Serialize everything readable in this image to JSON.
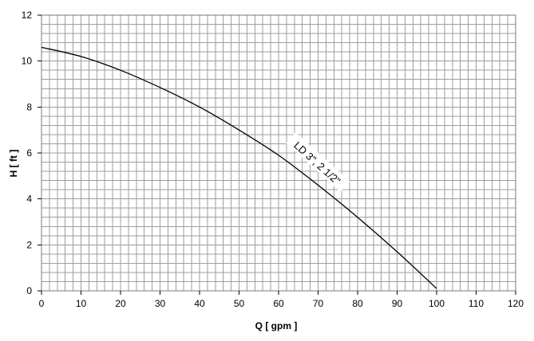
{
  "chart_data": {
    "type": "line",
    "title": "",
    "xlabel": "Q [ gpm ]",
    "ylabel": "H [ ft ]",
    "xlim": [
      0,
      120
    ],
    "ylim": [
      0,
      12
    ],
    "x_ticks": [
      0,
      10,
      20,
      30,
      40,
      50,
      60,
      70,
      80,
      90,
      100,
      110,
      120
    ],
    "y_ticks": [
      0,
      2,
      4,
      6,
      8,
      10,
      12
    ],
    "grid": true,
    "minor_grid_step": {
      "x": 2,
      "y": 0.4
    },
    "series": [
      {
        "name": "LD 3\", 2 1/2\"",
        "x": [
          0,
          10,
          20,
          30,
          40,
          50,
          60,
          70,
          80,
          90,
          100
        ],
        "y": [
          10.6,
          10.2,
          9.6,
          8.85,
          8.0,
          7.0,
          5.9,
          4.6,
          3.2,
          1.7,
          0.1
        ]
      }
    ],
    "annotations": [
      {
        "text": "LD 3\", 2 1/2\"",
        "attached_series": 0
      }
    ]
  },
  "colors": {
    "grid": "#9e9e9e",
    "curve": "#000000",
    "text": "#000000"
  }
}
